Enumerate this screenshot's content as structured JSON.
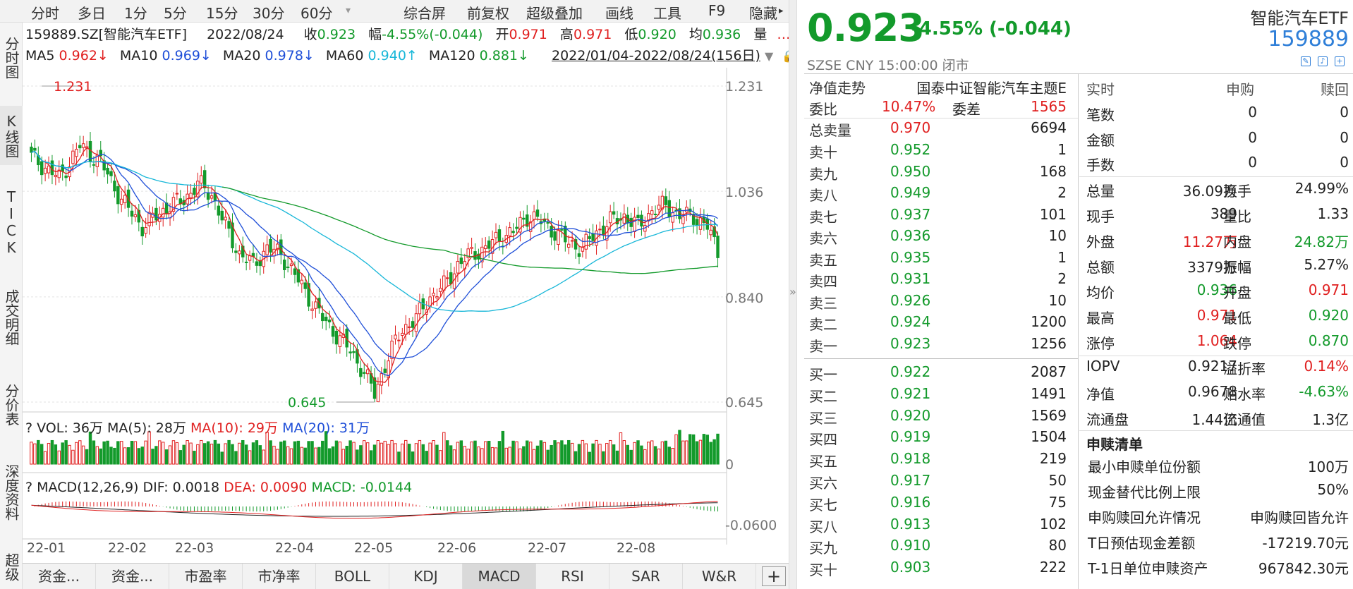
{
  "period_tabs": [
    "分时",
    "多日",
    "1分",
    "5分",
    "15分",
    "30分",
    "60分",
    "综合屏",
    "前复权",
    "超级叠加",
    "画线",
    "工具",
    "F9",
    "隐藏"
  ],
  "vertical_tabs": [
    "分时图",
    "K线图",
    "TICK",
    "成交明细",
    "分价表",
    "深度资料",
    "超级"
  ],
  "info": {
    "code_name": "159889.SZ[智能汽车ETF]",
    "date": "2022/08/24",
    "close_label": "收",
    "close": "0.923",
    "range_label": "幅",
    "range": "-4.55%(-0.044)",
    "open_label": "开",
    "open": "0.971",
    "high_label": "高",
    "high": "0.971",
    "low_label": "低",
    "low": "0.920",
    "avg_label": "均",
    "avg": "0.936",
    "vol_label": "量",
    "ma5": "MA5",
    "ma5_val": "0.962↓",
    "ma10": "MA10",
    "ma10_val": "0.969↓",
    "ma20": "MA20",
    "ma20_val": "0.978↓",
    "ma60": "MA60",
    "ma60_val": "0.940↑",
    "ma120": "MA120",
    "ma120_val": "0.881↓",
    "range_dates": "2022/01/04-2022/08/24(156日)"
  },
  "price_axis": [
    "1.231",
    "1.036",
    "0.840",
    "0.645"
  ],
  "annotations": {
    "high": "1.231",
    "low": "0.645"
  },
  "volume_header": {
    "q": "?",
    "vol": "VOL: 36万",
    "ma5": "MA(5): 28万",
    "ma10": "MA(10): 29万",
    "ma20": "MA(20): 31万"
  },
  "volume_axis": "0",
  "macd_header": {
    "q": "?",
    "name": "MACD(12,26,9)",
    "dif": "DIF: 0.0018",
    "dea": "DEA: 0.0090",
    "macd": "MACD: -0.0144"
  },
  "macd_axis": "-0.0600",
  "x_ticks": [
    "22-01",
    "22-02",
    "22-03",
    "22-04",
    "22-05",
    "22-06",
    "22-07",
    "22-08"
  ],
  "bottom_tabs": [
    "资金...",
    "资金...",
    "市盈率",
    "市净率",
    "BOLL",
    "KDJ",
    "MACD",
    "RSI",
    "SAR",
    "W&R"
  ],
  "bottom_add": "+",
  "divider_arrow": "»",
  "quote": {
    "price": "0.923",
    "change": "-4.55% (-0.044)",
    "meta": "SZSE  CNY  15:00:00  闭市",
    "name": "智能汽车ETF",
    "code": "159889"
  },
  "order_book_header": {
    "left": "净值走势",
    "right": "国泰中证智能汽车主题E"
  },
  "weibi": {
    "label": "委比",
    "value": "10.47%",
    "label2": "委差",
    "value2": "1565"
  },
  "total_sell": {
    "label": "总卖量",
    "price": "0.970",
    "vol": "6694"
  },
  "asks": [
    {
      "label": "卖十",
      "price": "0.952",
      "vol": "1"
    },
    {
      "label": "卖九",
      "price": "0.950",
      "vol": "168"
    },
    {
      "label": "卖八",
      "price": "0.949",
      "vol": "2"
    },
    {
      "label": "卖七",
      "price": "0.937",
      "vol": "101"
    },
    {
      "label": "卖六",
      "price": "0.936",
      "vol": "10"
    },
    {
      "label": "卖五",
      "price": "0.935",
      "vol": "1"
    },
    {
      "label": "卖四",
      "price": "0.931",
      "vol": "2"
    },
    {
      "label": "卖三",
      "price": "0.926",
      "vol": "10"
    },
    {
      "label": "卖二",
      "price": "0.924",
      "vol": "1200"
    },
    {
      "label": "卖一",
      "price": "0.923",
      "vol": "1256"
    }
  ],
  "bids": [
    {
      "label": "买一",
      "price": "0.922",
      "vol": "2087"
    },
    {
      "label": "买二",
      "price": "0.921",
      "vol": "1491"
    },
    {
      "label": "买三",
      "price": "0.920",
      "vol": "1569"
    },
    {
      "label": "买四",
      "price": "0.919",
      "vol": "1504"
    },
    {
      "label": "买五",
      "price": "0.918",
      "vol": "219"
    },
    {
      "label": "买六",
      "price": "0.917",
      "vol": "50"
    },
    {
      "label": "买七",
      "price": "0.916",
      "vol": "75"
    },
    {
      "label": "买八",
      "price": "0.913",
      "vol": "102"
    },
    {
      "label": "买九",
      "price": "0.910",
      "vol": "80"
    },
    {
      "label": "买十",
      "price": "0.903",
      "vol": "222"
    }
  ],
  "realtime": {
    "header": [
      "实时",
      "申购",
      "赎回"
    ],
    "rows": [
      {
        "label": "笔数",
        "a": "0",
        "b": "0"
      },
      {
        "label": "金额",
        "a": "0",
        "b": "0"
      },
      {
        "label": "手数",
        "a": "0",
        "b": "0"
      }
    ]
  },
  "stats": [
    {
      "l1": "总量",
      "v1": "36.09万",
      "l2": "换手",
      "v2": "24.99%",
      "c1": "#222",
      "c2": "#222"
    },
    {
      "l1": "现手",
      "v1": "389",
      "l2": "量比",
      "v2": "1.33",
      "c1": "#222",
      "c2": "#222"
    },
    {
      "l1": "外盘",
      "v1": "11.27万",
      "l2": "内盘",
      "v2": "24.82万",
      "c1": "#e02020",
      "c2": "#139a2b"
    },
    {
      "l1": "总额",
      "v1": "3379万",
      "l2": "振幅",
      "v2": "5.27%",
      "c1": "#222",
      "c2": "#222"
    },
    {
      "l1": "均价",
      "v1": "0.936",
      "l2": "开盘",
      "v2": "0.971",
      "c1": "#139a2b",
      "c2": "#e02020"
    },
    {
      "l1": "最高",
      "v1": "0.971",
      "l2": "最低",
      "v2": "0.920",
      "c1": "#e02020",
      "c2": "#139a2b"
    },
    {
      "l1": "涨停",
      "v1": "1.064",
      "l2": "跌停",
      "v2": "0.870",
      "c1": "#e02020",
      "c2": "#139a2b"
    },
    {
      "l1": "IOPV",
      "v1": "0.9217",
      "l2": "溢折率",
      "v2": "0.14%",
      "c1": "#222",
      "c2": "#e02020"
    },
    {
      "l1": "净值",
      "v1": "0.9678",
      "l2": "贴水率",
      "v2": "-4.63%",
      "c1": "#222",
      "c2": "#139a2b"
    },
    {
      "l1": "流通盘",
      "v1": "1.44亿",
      "l2": "流通值",
      "v2": "1.3亿",
      "c1": "#222",
      "c2": "#222"
    }
  ],
  "subscription": {
    "title": "申赎清单",
    "rows": [
      {
        "label": "最小申赎单位份额",
        "value": "100万"
      },
      {
        "label": "现金替代比例上限",
        "value": "50%"
      },
      {
        "label": "申购赎回允许情况",
        "value": "申购赎回皆允许"
      },
      {
        "label": "T日预估现金差额",
        "value": "-17219.70元"
      },
      {
        "label": "T-1日单位申赎资产",
        "value": "967842.30元"
      }
    ]
  },
  "colors": {
    "up": "#e02020",
    "down": "#139a2b",
    "ma5": "#e02020",
    "ma10": "#1f4fd8",
    "ma20": "#1f4fd8",
    "ma60": "#18b7d8",
    "ma120": "#139a2b"
  }
}
